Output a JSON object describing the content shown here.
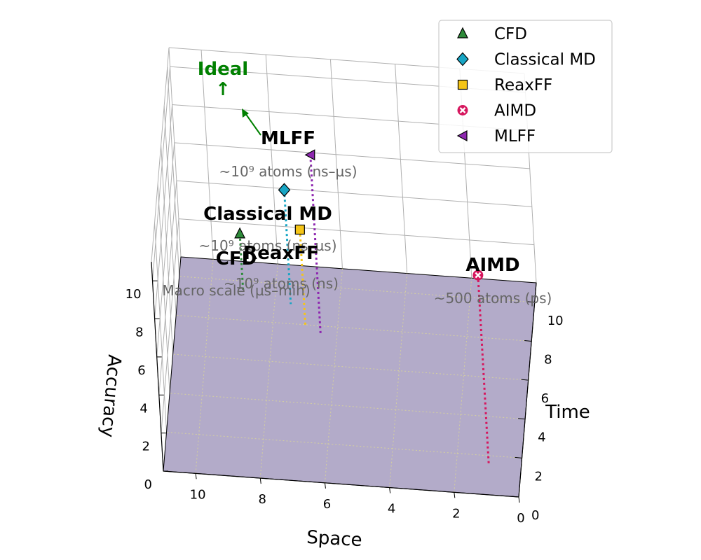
{
  "chart_data": {
    "type": "scatter",
    "projection": "3d",
    "xlabel": "Space",
    "ylabel": "Time",
    "zlabel": "Accuracy",
    "xlim": [
      0,
      11
    ],
    "ylim": [
      0,
      11
    ],
    "zlim": [
      0,
      11
    ],
    "x_ticks": [
      "0",
      "2",
      "4",
      "6",
      "8",
      "10"
    ],
    "y_ticks": [
      "0",
      "2",
      "4",
      "6",
      "8",
      "10"
    ],
    "z_ticks": [
      "0",
      "2",
      "4",
      "6",
      "8",
      "10"
    ],
    "grid": true,
    "floor_color": "#b3abc9",
    "legend_position": "top-right",
    "series": [
      {
        "name": "CFD",
        "x": 9,
        "y": 9.5,
        "z": 3,
        "marker": "triangle-up",
        "color": "#2e8b3a",
        "label": "CFD",
        "note": "Macro scale (µs–min)"
      },
      {
        "name": "Classical MD",
        "x": 7.5,
        "y": 9,
        "z": 6,
        "marker": "diamond",
        "color": "#17a5c4",
        "label": "Classical MD",
        "note": "~10⁹ atoms (ns–µs)"
      },
      {
        "name": "ReaxFF",
        "x": 7,
        "y": 8,
        "z": 5,
        "marker": "square",
        "color": "#f5c518",
        "label": "ReaxFF",
        "note": "~10⁹ atoms (ns)"
      },
      {
        "name": "AIMD",
        "x": 1,
        "y": 1.5,
        "z": 10,
        "marker": "x-filled",
        "color": "#d6175e",
        "label": "AIMD",
        "note": "~500 atoms (ps)"
      },
      {
        "name": "MLFF",
        "x": 6.5,
        "y": 7.5,
        "z": 9.5,
        "marker": "triangle-left",
        "color": "#8e27b0",
        "label": "MLFF",
        "note": "~10⁹ atoms (ns–µs)"
      }
    ],
    "annotation": {
      "text": "Ideal",
      "arrow_text": "↑",
      "color": "#008000"
    }
  }
}
